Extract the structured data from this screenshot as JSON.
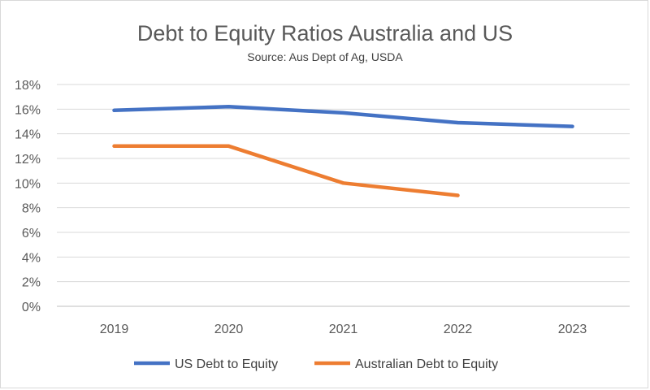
{
  "chart_data": {
    "type": "line",
    "title": "Debt to Equity Ratios Australia and US",
    "subtitle": "Source: Aus Dept of Ag, USDA",
    "categories": [
      "2019",
      "2020",
      "2021",
      "2022",
      "2023"
    ],
    "y_ticks": [
      "0%",
      "2%",
      "4%",
      "6%",
      "8%",
      "10%",
      "12%",
      "14%",
      "16%",
      "18%"
    ],
    "ylim": [
      0,
      18
    ],
    "y_unit": "%",
    "grid": true,
    "legend_position": "bottom",
    "series": [
      {
        "name": "US Debt to Equity",
        "color": "#4472c4",
        "values": [
          15.9,
          16.2,
          15.7,
          14.9,
          14.6
        ]
      },
      {
        "name": "Australian Debt to Equity",
        "color": "#ed7d31",
        "values": [
          13.0,
          13.0,
          10.0,
          9.0,
          null
        ]
      }
    ]
  }
}
